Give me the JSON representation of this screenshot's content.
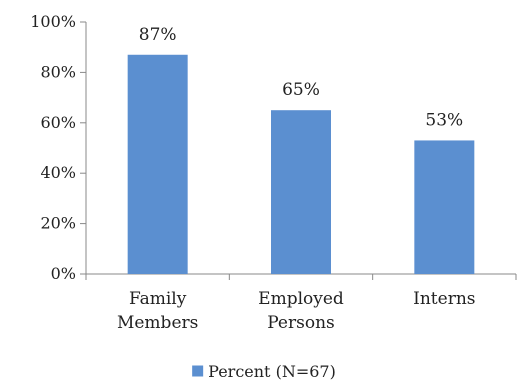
{
  "chart_data": {
    "type": "bar",
    "categories": [
      [
        "Family",
        "Members"
      ],
      [
        "Employed",
        "Persons"
      ],
      [
        "Interns"
      ]
    ],
    "series": [
      {
        "name": "Percent (N=67)",
        "values": [
          87,
          65,
          53
        ],
        "color": "#5b8fd0"
      }
    ],
    "data_labels": [
      "87%",
      "65%",
      "53%"
    ],
    "y_ticks": [
      0,
      20,
      40,
      60,
      80,
      100
    ],
    "y_tick_labels": [
      "0%",
      "20%",
      "40%",
      "60%",
      "80%",
      "100%"
    ],
    "ylim": [
      0,
      100
    ],
    "grid": false,
    "legend": "bottom-center",
    "axis_color": "#888888"
  }
}
